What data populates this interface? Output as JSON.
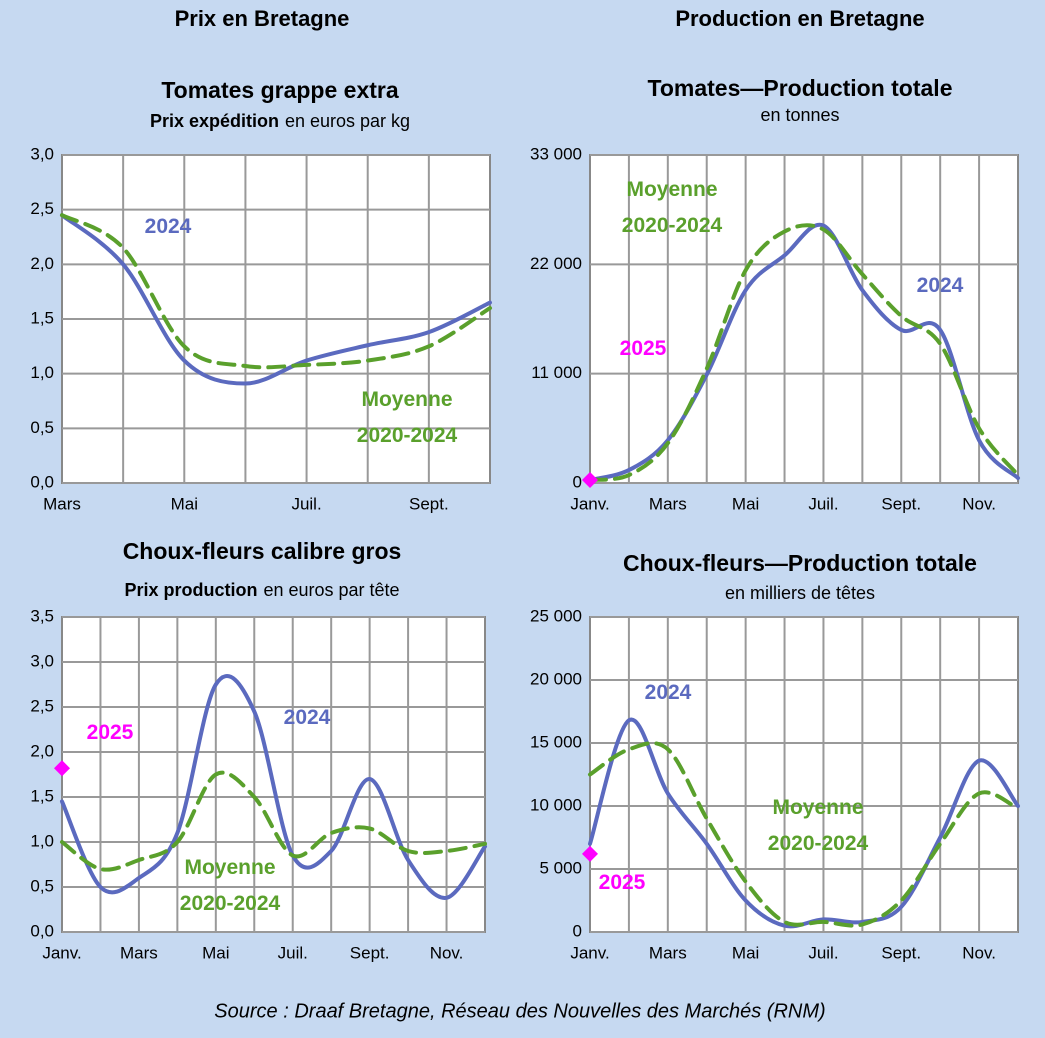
{
  "headings": {
    "left": "Prix en Bretagne",
    "right": "Production en Bretagne"
  },
  "source": "Source :  Draaf Bretagne, Réseau des Nouvelles des Marchés (RNM)",
  "chart_data": [
    {
      "type": "line",
      "title": "Tomates grappe extra",
      "subtitle_bold": "Prix expédition",
      "subtitle": "en euros par kg",
      "categories": [
        "Mars",
        null,
        "Mai",
        null,
        "Juil.",
        null,
        "Sept.",
        null
      ],
      "series": [
        {
          "name": "2024",
          "color": "#5b6abf",
          "values": [
            2.45,
            2.0,
            1.12,
            0.91,
            1.12,
            1.26,
            1.38,
            1.65
          ]
        },
        {
          "name": "Moyenne 2020-2024",
          "color": "#5aa02c",
          "dashed": true,
          "values": [
            2.45,
            2.15,
            1.25,
            1.07,
            1.08,
            1.12,
            1.25,
            1.6
          ]
        }
      ],
      "ylim": [
        0,
        3
      ],
      "yticks": [
        {
          "value": 0,
          "label": "0,0"
        },
        {
          "value": 0.5,
          "label": "0,5"
        },
        {
          "value": 1,
          "label": "1,0"
        },
        {
          "value": 1.5,
          "label": "1,5"
        },
        {
          "value": 2,
          "label": "2,0"
        },
        {
          "value": 2.5,
          "label": "2,5"
        },
        {
          "value": 3,
          "label": "3,0"
        }
      ],
      "grid": true
    },
    {
      "type": "line",
      "title": "Tomates—Production totale",
      "subtitle": "en tonnes",
      "categories": [
        "Janv.",
        null,
        "Mars",
        null,
        "Mai",
        null,
        "Juil.",
        null,
        "Sept.",
        null,
        "Nov.",
        null
      ],
      "series": [
        {
          "name": "2024",
          "color": "#5b6abf",
          "values": [
            300,
            1300,
            4300,
            10900,
            19400,
            22900,
            25900,
            19400,
            15400,
            15400,
            4300,
            500
          ]
        },
        {
          "name": "Moyenne 2020-2024",
          "color": "#5aa02c",
          "dashed": true,
          "values": [
            300,
            800,
            4000,
            11500,
            21400,
            25300,
            25500,
            21000,
            16800,
            14000,
            5500,
            800
          ]
        },
        {
          "name": "2025",
          "color": "#ff00ff",
          "marker": "diamond",
          "values": [
            300,
            null,
            null,
            null,
            null,
            null,
            null,
            null,
            null,
            null,
            null,
            null
          ]
        }
      ],
      "ylim": [
        0,
        33000
      ],
      "yticks": [
        0,
        {
          "value": 11000,
          "label": "11 000"
        },
        {
          "value": 22000,
          "label": "22 000"
        },
        {
          "value": 33000,
          "label": "33 000"
        }
      ],
      "grid": true
    },
    {
      "type": "line",
      "title": "Choux-fleurs calibre gros",
      "subtitle_bold": "Prix production",
      "subtitle": "en euros par tête",
      "categories": [
        "Janv.",
        null,
        "Mars",
        null,
        "Mai",
        null,
        "Juil.",
        null,
        "Sept.",
        null,
        "Nov.",
        null
      ],
      "series": [
        {
          "name": "2024",
          "color": "#5b6abf",
          "values": [
            1.45,
            0.5,
            0.6,
            1.1,
            2.75,
            2.45,
            0.85,
            0.9,
            1.7,
            0.8,
            0.38,
            0.95
          ]
        },
        {
          "name": "Moyenne 2020-2024",
          "color": "#5aa02c",
          "dashed": true,
          "values": [
            1.0,
            0.7,
            0.8,
            1.0,
            1.75,
            1.5,
            0.85,
            1.1,
            1.15,
            0.9,
            0.9,
            0.98
          ]
        },
        {
          "name": "2025",
          "color": "#ff00ff",
          "marker": "diamond",
          "values": [
            1.82,
            null,
            null,
            null,
            null,
            null,
            null,
            null,
            null,
            null,
            null,
            null
          ]
        }
      ],
      "ylim": [
        0,
        3.5
      ],
      "yticks": [
        {
          "value": 0,
          "label": "0,0"
        },
        {
          "value": 0.5,
          "label": "0,5"
        },
        {
          "value": 1,
          "label": "1,0"
        },
        {
          "value": 1.5,
          "label": "1,5"
        },
        {
          "value": 2,
          "label": "2,0"
        },
        {
          "value": 2.5,
          "label": "2,5"
        },
        {
          "value": 3,
          "label": "3,0"
        },
        {
          "value": 3.5,
          "label": "3,5"
        }
      ],
      "grid": true
    },
    {
      "type": "line",
      "title": "Choux-fleurs—Production totale",
      "subtitle": "en milliers de têtes",
      "categories": [
        "Janv.",
        null,
        "Mars",
        null,
        "Mai",
        null,
        "Juil.",
        null,
        "Sept.",
        null,
        "Nov.",
        null
      ],
      "series": [
        {
          "name": "2024",
          "color": "#5b6abf",
          "values": [
            7000,
            16800,
            11000,
            7000,
            2500,
            500,
            1000,
            800,
            2000,
            7500,
            13600,
            10000
          ]
        },
        {
          "name": "Moyenne 2020-2024",
          "color": "#5aa02c",
          "dashed": true,
          "values": [
            12500,
            14500,
            14500,
            9000,
            4000,
            800,
            800,
            600,
            2500,
            7000,
            11000,
            9800
          ]
        },
        {
          "name": "2025",
          "color": "#ff00ff",
          "marker": "diamond",
          "values": [
            6200,
            null,
            null,
            null,
            null,
            null,
            null,
            null,
            null,
            null,
            null,
            null
          ]
        }
      ],
      "ylim": [
        0,
        25000
      ],
      "yticks": [
        0,
        {
          "value": 5000,
          "label": "5 000"
        },
        {
          "value": 10000,
          "label": "10 000"
        },
        {
          "value": 15000,
          "label": "15 000"
        },
        {
          "value": 20000,
          "label": "20 000"
        },
        {
          "value": 25000,
          "label": "25 000"
        }
      ],
      "grid": true
    }
  ]
}
